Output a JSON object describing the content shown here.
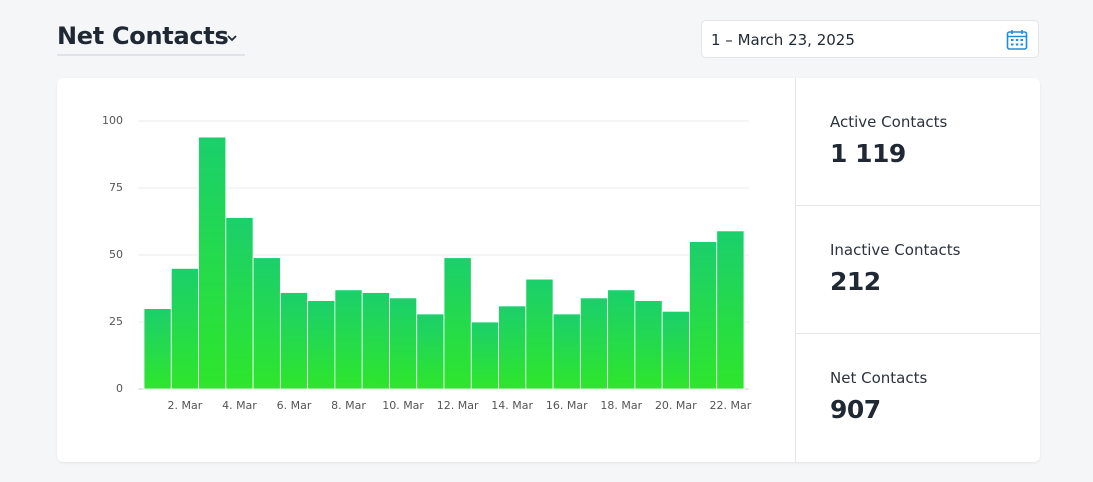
{
  "header": {
    "title": "Net Contacts",
    "date_range": "1 – March 23, 2025"
  },
  "stats": [
    {
      "label": "Active Contacts",
      "value": "1 119"
    },
    {
      "label": "Inactive Contacts",
      "value": "212"
    },
    {
      "label": "Net Contacts",
      "value": "907"
    }
  ],
  "chart_data": {
    "type": "bar",
    "categories": [
      null,
      "2. Mar",
      null,
      "4. Mar",
      null,
      "6. Mar",
      null,
      "8. Mar",
      null,
      "10. Mar",
      null,
      "12. Mar",
      null,
      "14. Mar",
      null,
      "16. Mar",
      null,
      "18. Mar",
      null,
      "20. Mar",
      null,
      "22. Mar"
    ],
    "values": [
      30,
      45,
      94,
      64,
      49,
      36,
      33,
      37,
      36,
      34,
      28,
      49,
      25,
      31,
      41,
      28,
      34,
      37,
      33,
      29,
      55,
      59
    ],
    "color": [
      "#1bcf6c",
      "#2ee62b"
    ],
    "ylim": [
      0,
      100
    ],
    "yticks": [
      0,
      25,
      50,
      75,
      100
    ],
    "grid": true
  }
}
